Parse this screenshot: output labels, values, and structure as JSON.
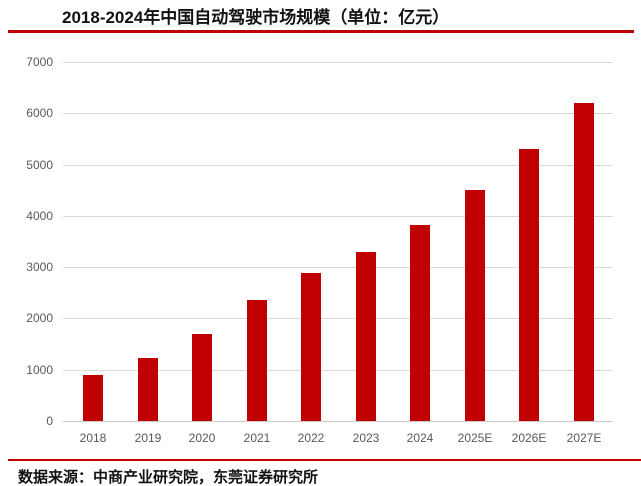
{
  "header": {
    "title": "2018-2024年中国自动驾驶市场规模（单位：亿元）"
  },
  "footer": {
    "source": "数据来源：中商产业研究院，东莞证券研究所"
  },
  "colors": {
    "bar": "#C00000",
    "divider": "#C00000",
    "gridline": "#D9D9D9",
    "axis_label": "#595959"
  },
  "chart_data": {
    "type": "bar",
    "title": "2018-2024年中国自动驾驶市场规模（单位：亿元）",
    "unit": "亿元",
    "categories": [
      "2018",
      "2019",
      "2020",
      "2021",
      "2022",
      "2023",
      "2024",
      "2025E",
      "2026E",
      "2027E"
    ],
    "values": [
      900,
      1230,
      1700,
      2360,
      2890,
      3300,
      3830,
      4500,
      5300,
      6200
    ],
    "xlabel": "",
    "ylabel": "",
    "ylim": [
      0,
      7000
    ],
    "yticks": [
      0,
      1000,
      2000,
      3000,
      4000,
      5000,
      6000,
      7000
    ],
    "grid": true,
    "legend_position": "none",
    "bar_color": "#C00000"
  }
}
